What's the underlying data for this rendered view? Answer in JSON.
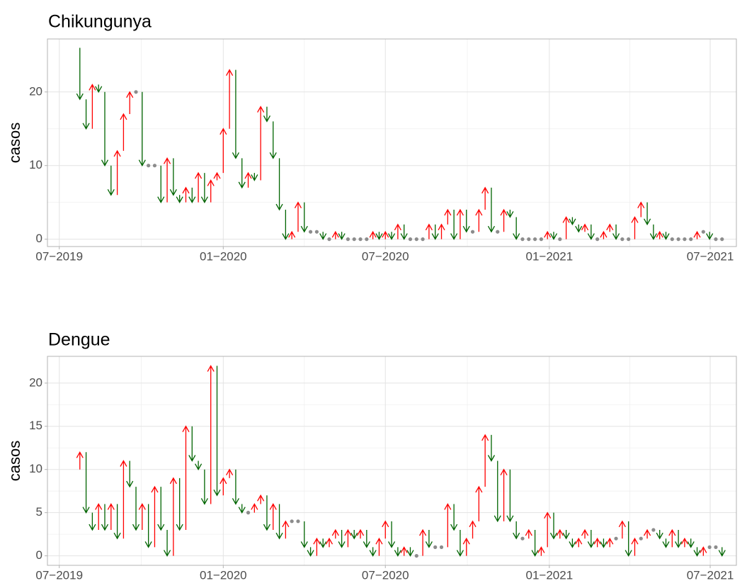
{
  "chart_data": [
    {
      "type": "arrow",
      "title": "Chikungunya",
      "y_label": "casos",
      "grid": true,
      "up_color": "#ff0000",
      "down_color": "#006400",
      "same_color": "#8c8c8c",
      "xlim": [
        -4.2,
        106.3
      ],
      "ylim": [
        -1,
        27.2
      ],
      "xticks": [
        {
          "value": -2.3,
          "label": "07−2019"
        },
        {
          "value": 24.0,
          "label": "01−2020"
        },
        {
          "value": 50.0,
          "label": "07−2020"
        },
        {
          "value": 76.3,
          "label": "01−2021"
        },
        {
          "value": 102.1,
          "label": "07−2021"
        }
      ],
      "yticks": [
        0,
        10,
        20
      ],
      "x": [
        0,
        1,
        2,
        3,
        4,
        5,
        6,
        7,
        8,
        9,
        10,
        11,
        12,
        13,
        14,
        15,
        16,
        17,
        18,
        19,
        20,
        21,
        22,
        23,
        24,
        25,
        26,
        27,
        28,
        29,
        30,
        31,
        32,
        33,
        34,
        35,
        36,
        37,
        38,
        39,
        40,
        41,
        42,
        43,
        44,
        45,
        46,
        47,
        48,
        49,
        50,
        51,
        52,
        53,
        54,
        55,
        56,
        57,
        58,
        59,
        60,
        61,
        62,
        63,
        64,
        65,
        66,
        67,
        68,
        69,
        70,
        71,
        72,
        73,
        74,
        75,
        76,
        77,
        78,
        79,
        80,
        81,
        82,
        83,
        84,
        85,
        86,
        87,
        88,
        89,
        90,
        91,
        92,
        93,
        94,
        95,
        96,
        97,
        98,
        99,
        100,
        101,
        102,
        103,
        104
      ],
      "values": [
        26,
        19,
        15,
        21,
        20,
        10,
        6,
        12,
        17,
        20,
        20,
        10,
        10,
        10,
        5,
        11,
        6,
        5,
        7,
        5,
        9,
        5,
        8,
        9,
        15,
        23,
        11,
        7,
        9,
        8,
        18,
        16,
        11,
        4,
        0,
        1,
        5,
        1,
        1,
        1,
        0,
        0,
        1,
        0,
        0,
        0,
        0,
        0,
        1,
        0,
        1,
        0,
        2,
        0,
        0,
        0,
        0,
        2,
        0,
        2,
        4,
        0,
        4,
        1,
        1,
        4,
        7,
        1,
        1,
        4,
        3,
        0,
        0,
        0,
        0,
        0,
        1,
        0,
        0,
        3,
        2,
        1,
        2,
        0,
        0,
        1,
        2,
        0,
        0,
        0,
        3,
        5,
        2,
        0,
        1,
        0,
        0,
        0,
        0,
        0,
        1,
        1,
        0,
        0,
        0
      ]
    },
    {
      "type": "arrow",
      "title": "Dengue",
      "y_label": "casos",
      "grid": true,
      "up_color": "#ff0000",
      "down_color": "#006400",
      "same_color": "#8c8c8c",
      "xlim": [
        -4.2,
        106.3
      ],
      "ylim": [
        -1.1,
        23.1
      ],
      "xticks": [
        {
          "value": -2.3,
          "label": "07−2019"
        },
        {
          "value": 24.0,
          "label": "01−2020"
        },
        {
          "value": 50.0,
          "label": "07−2020"
        },
        {
          "value": 76.3,
          "label": "01−2021"
        },
        {
          "value": 102.1,
          "label": "07−2021"
        }
      ],
      "yticks": [
        0,
        5,
        10,
        15,
        20
      ],
      "x": [
        0,
        1,
        2,
        3,
        4,
        5,
        6,
        7,
        8,
        9,
        10,
        11,
        12,
        13,
        14,
        15,
        16,
        17,
        18,
        19,
        20,
        21,
        22,
        23,
        24,
        25,
        26,
        27,
        28,
        29,
        30,
        31,
        32,
        33,
        34,
        35,
        36,
        37,
        38,
        39,
        40,
        41,
        42,
        43,
        44,
        45,
        46,
        47,
        48,
        49,
        50,
        51,
        52,
        53,
        54,
        55,
        56,
        57,
        58,
        59,
        60,
        61,
        62,
        63,
        64,
        65,
        66,
        67,
        68,
        69,
        70,
        71,
        72,
        73,
        74,
        75,
        76,
        77,
        78,
        79,
        80,
        81,
        82,
        83,
        84,
        85,
        86,
        87,
        88,
        89,
        90,
        91,
        92,
        93,
        94,
        95,
        96,
        97,
        98,
        99,
        100,
        101,
        102,
        103,
        104
      ],
      "values": [
        10,
        12,
        5,
        3,
        6,
        3,
        6,
        2,
        11,
        8,
        3,
        6,
        1,
        8,
        3,
        0,
        9,
        3,
        15,
        11,
        10,
        6,
        22,
        7,
        9,
        10,
        6,
        5,
        5,
        6,
        7,
        3,
        6,
        2,
        4,
        4,
        4,
        1,
        0,
        2,
        1,
        2,
        3,
        1,
        3,
        2,
        3,
        1,
        0,
        2,
        4,
        1,
        0,
        1,
        0,
        0,
        3,
        1,
        1,
        1,
        6,
        3,
        0,
        2,
        4,
        8,
        14,
        11,
        4,
        10,
        4,
        2,
        2,
        3,
        0,
        1,
        5,
        2,
        3,
        2,
        1,
        2,
        3,
        1,
        2,
        1,
        2,
        2,
        4,
        0,
        2,
        2,
        3,
        3,
        2,
        1,
        3,
        1,
        2,
        1,
        0,
        1,
        1,
        1,
        0
      ]
    }
  ]
}
